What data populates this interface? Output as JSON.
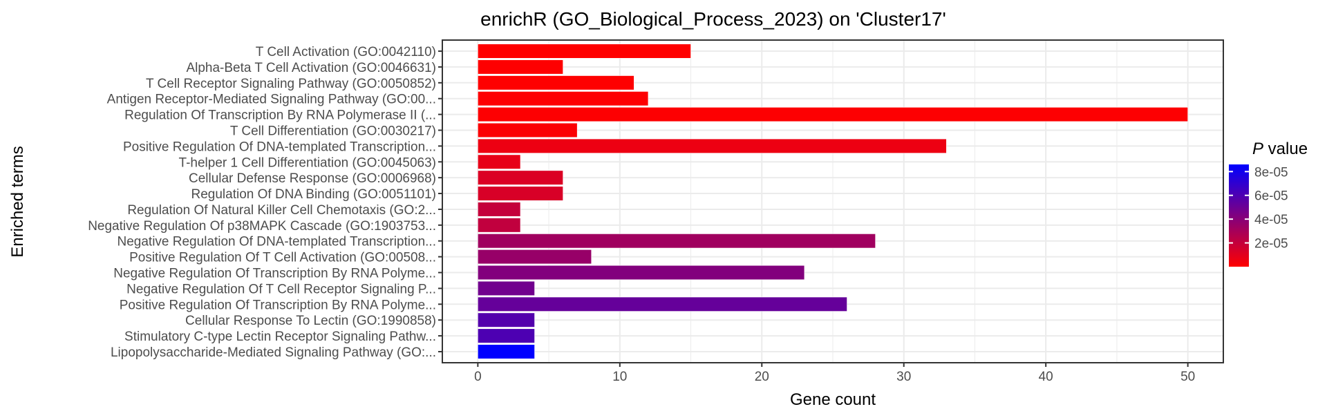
{
  "chart_data": {
    "type": "bar",
    "orientation": "horizontal",
    "title": "enrichR (GO_Biological_Process_2023) on 'Cluster17'",
    "xlabel": "Gene count",
    "ylabel": "Enriched terms",
    "xlim": [
      -2.5,
      52.5
    ],
    "xticks": [
      0,
      10,
      20,
      30,
      40,
      50
    ],
    "grid": true,
    "categories": [
      "T Cell Activation (GO:0042110)",
      "Alpha-Beta T Cell Activation (GO:0046631)",
      "T Cell Receptor Signaling Pathway (GO:0050852)",
      "Antigen Receptor-Mediated Signaling Pathway (GO:00...",
      "Regulation Of Transcription By RNA Polymerase II (...",
      "T Cell Differentiation (GO:0030217)",
      "Positive Regulation Of DNA-templated Transcription...",
      "T-helper 1 Cell Differentiation (GO:0045063)",
      "Cellular Defense Response (GO:0006968)",
      "Regulation Of DNA Binding (GO:0051101)",
      "Regulation Of Natural Killer Cell Chemotaxis (GO:2...",
      "Negative Regulation Of p38MAPK Cascade (GO:1903753...",
      "Negative Regulation Of DNA-templated Transcription...",
      "Positive Regulation Of T Cell Activation (GO:00508...",
      "Negative Regulation Of Transcription By RNA Polyme...",
      "Negative Regulation Of T Cell Receptor Signaling P...",
      "Positive Regulation Of Transcription By RNA Polyme...",
      "Cellular Response To Lectin (GO:1990858)",
      "Stimulatory C-type Lectin Receptor Signaling Pathw...",
      "Lipopolysaccharide-Mediated Signaling Pathway (GO:..."
    ],
    "values": [
      15,
      6,
      11,
      12,
      50,
      7,
      33,
      3,
      6,
      6,
      3,
      3,
      28,
      8,
      23,
      4,
      26,
      4,
      4,
      4
    ],
    "p_values": [
      1e-07,
      2e-07,
      4e-07,
      6e-07,
      8e-07,
      1.5e-06,
      6e-06,
      8e-06,
      1.2e-05,
      1.3e-05,
      2e-05,
      2.1e-05,
      3.2e-05,
      3.5e-05,
      4.2e-05,
      4.8e-05,
      5.2e-05,
      5.8e-05,
      6e-05,
      8.6e-05
    ],
    "legend": {
      "title_italic": "P",
      "title_rest": " value",
      "placement": "right",
      "ticks": [
        2e-05,
        4e-05,
        6e-05,
        8e-05
      ],
      "tick_labels": [
        "2e-05",
        "4e-05",
        "6e-05",
        "8e-05"
      ],
      "range": [
        0,
        8.6e-05
      ],
      "color_low": "#ff0000",
      "color_high": "#0000ff"
    },
    "colors": {
      "panel_border": "#333333",
      "grid": "#ebebeb",
      "text": "#4d4d4d",
      "title": "#000000"
    }
  }
}
